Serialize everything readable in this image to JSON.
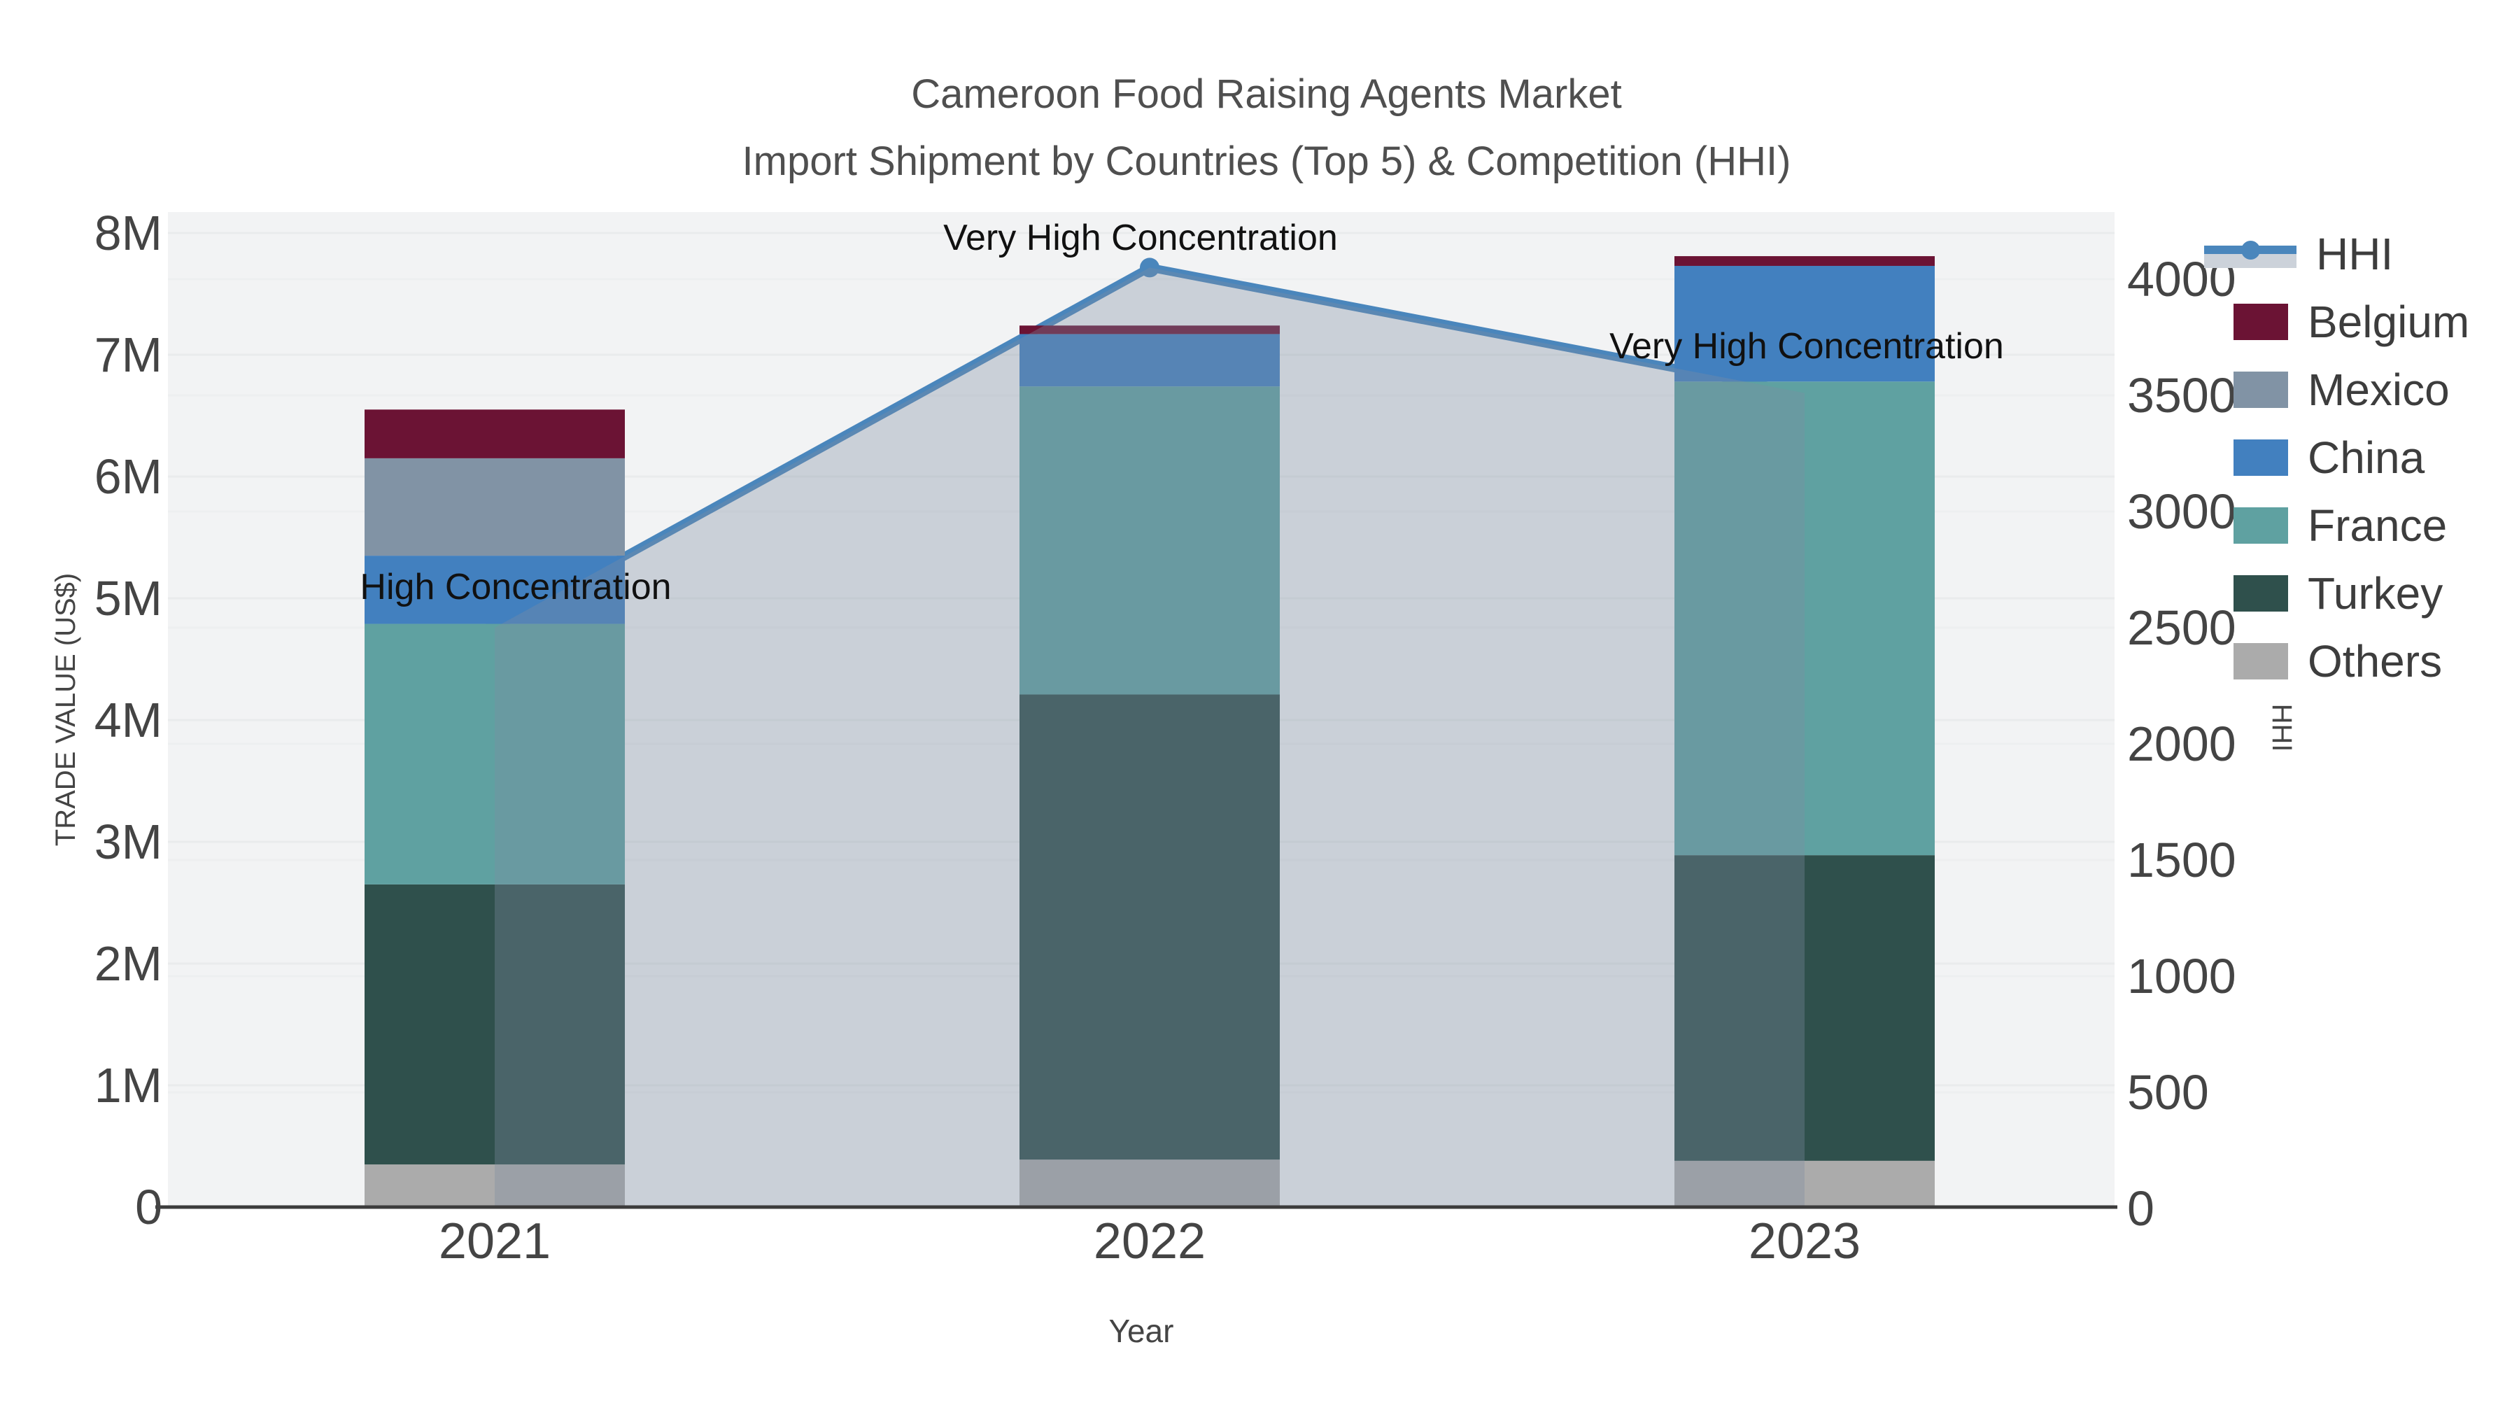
{
  "chart_data": {
    "type": "combo-stacked-bar-line",
    "title": "Cameroon Food Raising Agents Market",
    "subtitle": "Import Shipment by Countries (Top 5) & Competition (HHI)",
    "categories": [
      "2021",
      "2022",
      "2023"
    ],
    "bar_value_unit": "Trade value, US$ millions",
    "series": [
      {
        "name": "Others",
        "color": "#ababab",
        "values": [
          0.35,
          0.39,
          0.38
        ]
      },
      {
        "name": "Turkey",
        "color": "#2f504c",
        "values": [
          2.3,
          3.82,
          2.51
        ]
      },
      {
        "name": "France",
        "color": "#5fa1a1",
        "values": [
          2.14,
          2.53,
          3.89
        ]
      },
      {
        "name": "China",
        "color": "#4280bf",
        "values": [
          0.56,
          0.43,
          0.95
        ]
      },
      {
        "name": "Mexico",
        "color": "#8193a5",
        "values": [
          0.8,
          0.0,
          0.0
        ]
      },
      {
        "name": "Belgium",
        "color": "#6b1334",
        "values": [
          0.4,
          0.07,
          0.08
        ]
      }
    ],
    "totals": [
      6.55,
      7.24,
      7.81
    ],
    "line_series": {
      "name": "HHI",
      "color": "#4a86bc",
      "fill_color": "rgba(126,141,162,0.34)",
      "values": [
        2500,
        4050,
        3510
      ]
    },
    "annotations": [
      {
        "text": "High Concentration",
        "year": "2021"
      },
      {
        "text": "Very High Concentration",
        "year": "2022"
      },
      {
        "text": "Very High Concentration",
        "year": "2023"
      }
    ],
    "x_axis": {
      "title": "Year",
      "ticks": [
        "2021",
        "2022",
        "2023"
      ]
    },
    "y_left": {
      "title": "TRADE VALUE (US$)",
      "range": [
        0,
        8.17
      ],
      "ticks": [
        {
          "v": 0,
          "label": "0"
        },
        {
          "v": 1,
          "label": "1M"
        },
        {
          "v": 2,
          "label": "2M"
        },
        {
          "v": 3,
          "label": "3M"
        },
        {
          "v": 4,
          "label": "4M"
        },
        {
          "v": 5,
          "label": "5M"
        },
        {
          "v": 6,
          "label": "6M"
        },
        {
          "v": 7,
          "label": "7M"
        },
        {
          "v": 8,
          "label": "8M"
        }
      ]
    },
    "y_right": {
      "title": "HHI",
      "range": [
        0,
        4285
      ],
      "ticks": [
        {
          "v": 0,
          "label": "0"
        },
        {
          "v": 500,
          "label": "500"
        },
        {
          "v": 1000,
          "label": "1000"
        },
        {
          "v": 1500,
          "label": "1500"
        },
        {
          "v": 2000,
          "label": "2000"
        },
        {
          "v": 2500,
          "label": "2500"
        },
        {
          "v": 3000,
          "label": "3000"
        },
        {
          "v": 3500,
          "label": "3500"
        },
        {
          "v": 4000,
          "label": "4000"
        }
      ]
    },
    "legend_order": [
      "HHI",
      "Belgium",
      "Mexico",
      "China",
      "France",
      "Turkey",
      "Others"
    ],
    "colors": {
      "plot_background": "#f2f3f4",
      "grid_left": "#e9ebec",
      "grid_right": "#edeff0",
      "axis_line": "#3c3c3c",
      "tick_text": "#444444",
      "annotation_text": "#111111",
      "title_text": "#4f4f4f"
    }
  }
}
